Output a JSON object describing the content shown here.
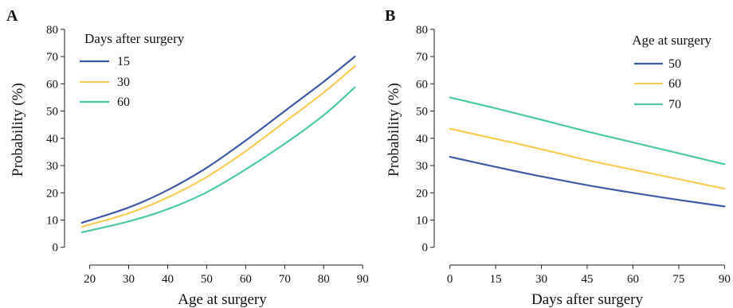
{
  "chart_data": [
    {
      "type": "line",
      "panel_label": "A",
      "xlabel": "Age at surgery",
      "ylabel": "Probability  (%)",
      "xlim": [
        16,
        92
      ],
      "ylim": [
        -3,
        82
      ],
      "x_ticks": [
        20,
        30,
        40,
        50,
        60,
        70,
        80,
        90
      ],
      "y_ticks": [
        0,
        10,
        20,
        30,
        40,
        50,
        60,
        70,
        80
      ],
      "legend_title": "Days  after surgery",
      "legend_position": "top-left",
      "x": [
        18,
        30,
        40,
        50,
        60,
        70,
        80,
        88
      ],
      "series": [
        {
          "name": "15",
          "color": "#3f5aa6",
          "values": [
            9.0,
            14.6,
            21.0,
            29.2,
            39.2,
            50.0,
            60.8,
            70.0
          ]
        },
        {
          "name": "30",
          "color": "#f9cd55",
          "values": [
            7.5,
            12.5,
            18.3,
            25.8,
            35.3,
            46.0,
            56.8,
            66.5
          ]
        },
        {
          "name": "60",
          "color": "#4dc9a4",
          "values": [
            5.5,
            9.5,
            14.0,
            20.2,
            28.6,
            38.0,
            48.5,
            58.7
          ]
        }
      ]
    },
    {
      "type": "line",
      "panel_label": "B",
      "xlabel": "Days  after surgery",
      "ylabel": "Probability  (%)",
      "xlim": [
        -2,
        92
      ],
      "ylim": [
        -3,
        82
      ],
      "x_ticks": [
        0,
        15,
        30,
        45,
        60,
        75,
        90
      ],
      "y_ticks": [
        0,
        10,
        20,
        30,
        40,
        50,
        60,
        70,
        80
      ],
      "legend_title": "Age  at surgery",
      "legend_position": "top-right",
      "x": [
        0,
        15,
        30,
        45,
        60,
        75,
        90
      ],
      "series": [
        {
          "name": "50",
          "color": "#3f5aa6",
          "values": [
            33.2,
            29.5,
            26.0,
            22.8,
            20.0,
            17.4,
            15.0
          ]
        },
        {
          "name": "60",
          "color": "#f9cd55",
          "values": [
            43.5,
            39.8,
            36.0,
            32.0,
            28.5,
            25.0,
            21.5
          ]
        },
        {
          "name": "70",
          "color": "#4dc9a4",
          "values": [
            55.0,
            51.0,
            46.8,
            42.5,
            38.5,
            34.5,
            30.5
          ]
        }
      ]
    }
  ]
}
